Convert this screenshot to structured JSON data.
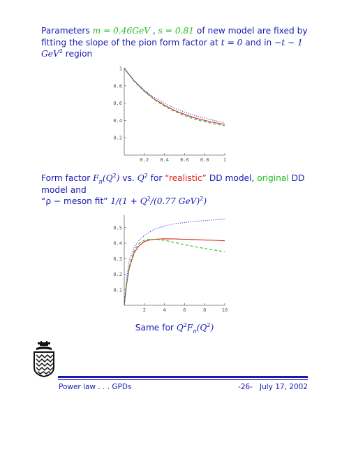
{
  "para1": {
    "lead": "Parameters ",
    "m_eq": "m = 0.46GeV",
    "sep": " , ",
    "s_eq": "s = 0.81",
    "rest": " of new model are fixed by fitting the slope of the pion form factor at ",
    "t_eq": "t = 0",
    "and_in": " and in ",
    "range": "−t ∼ 1 GeV",
    "range_sup": "2",
    "tail": " region"
  },
  "para2": {
    "lead": "Form factor ",
    "F": "F",
    "pi": "π",
    "arg": "(Q",
    "arg_sup": "2",
    "arg_close": ")",
    "vs": " vs. ",
    "Q": "Q",
    "Q_sup": "2",
    "for": " for ",
    "realistic": "“realistic”",
    "dd_model": " DD model, ",
    "original": "original",
    "dd_model_and": " DD model and",
    "rho_fit": "“ρ − meson fit”",
    "formula": " 1/(1 + Q",
    "formula_sup": "2",
    "formula_mid": "/(0.77 GeV)",
    "formula_sup2": "2",
    "formula_end": ")"
  },
  "caption": {
    "prefix": "Same for ",
    "expr": "Q",
    "sup": "2",
    "F": "F",
    "pi": "π",
    "arg": "(Q",
    "arg_sup": "2",
    "arg_end": ")"
  },
  "footer": {
    "left": "Power law . . . GPDs",
    "right": "-26-   July 17, 2002"
  },
  "colors": {
    "text": "#1a1ab0",
    "green": "#22bb22",
    "red": "#e02020",
    "blue_dotted": "#2020ee"
  },
  "chart_data": [
    {
      "type": "line",
      "title": "",
      "xlabel": "",
      "ylabel": "",
      "xlim": [
        0,
        1
      ],
      "ylim": [
        0,
        1
      ],
      "xticks": [
        "0.2",
        "0.4",
        "0.6",
        "0.8",
        "1"
      ],
      "yticks": [
        "0.2",
        "0.4",
        "0.6",
        "0.8",
        "1"
      ],
      "series": [
        {
          "style": "red-solid",
          "x": [
            0,
            0.1,
            0.2,
            0.3,
            0.4,
            0.5,
            0.6,
            0.7,
            0.8,
            0.9,
            1.0
          ],
          "y": [
            1.0,
            0.855,
            0.74,
            0.645,
            0.575,
            0.515,
            0.47,
            0.43,
            0.4,
            0.375,
            0.355
          ]
        },
        {
          "style": "green-dashed",
          "x": [
            0,
            0.1,
            0.2,
            0.3,
            0.4,
            0.5,
            0.6,
            0.7,
            0.8,
            0.9,
            1.0
          ],
          "y": [
            1.0,
            0.85,
            0.735,
            0.64,
            0.565,
            0.505,
            0.455,
            0.415,
            0.385,
            0.36,
            0.34
          ]
        },
        {
          "style": "blue-dotted",
          "x": [
            0,
            0.1,
            0.2,
            0.3,
            0.4,
            0.5,
            0.6,
            0.7,
            0.8,
            0.9,
            1.0
          ],
          "y": [
            1.0,
            0.857,
            0.748,
            0.664,
            0.597,
            0.543,
            0.497,
            0.459,
            0.426,
            0.398,
            0.372
          ]
        }
      ]
    },
    {
      "type": "line",
      "title": "",
      "xlabel": "",
      "ylabel": "",
      "xlim": [
        0,
        10
      ],
      "ylim": [
        0,
        0.58
      ],
      "xticks": [
        "2",
        "4",
        "6",
        "8",
        "10"
      ],
      "yticks": [
        "0.1",
        "0.2",
        "0.3",
        "0.4",
        "0.5"
      ],
      "series": [
        {
          "style": "red-solid",
          "x": [
            0,
            0.2,
            0.5,
            1,
            1.5,
            2,
            2.5,
            3,
            4,
            5,
            6,
            7,
            8,
            9,
            10
          ],
          "y": [
            0,
            0.12,
            0.24,
            0.34,
            0.385,
            0.41,
            0.42,
            0.425,
            0.428,
            0.427,
            0.425,
            0.423,
            0.42,
            0.418,
            0.415
          ]
        },
        {
          "style": "green-dashed",
          "x": [
            0,
            0.2,
            0.5,
            1,
            1.5,
            2,
            2.5,
            3,
            4,
            5,
            6,
            7,
            8,
            9,
            10
          ],
          "y": [
            0,
            0.125,
            0.25,
            0.355,
            0.4,
            0.418,
            0.425,
            0.425,
            0.418,
            0.405,
            0.39,
            0.378,
            0.365,
            0.355,
            0.345
          ]
        },
        {
          "style": "blue-dotted",
          "x": [
            0,
            0.2,
            0.5,
            1,
            1.5,
            2,
            3,
            4,
            5,
            6,
            7,
            8,
            9,
            10
          ],
          "y": [
            0,
            0.15,
            0.29,
            0.375,
            0.42,
            0.45,
            0.49,
            0.51,
            0.525,
            0.533,
            0.54,
            0.545,
            0.55,
            0.555
          ]
        }
      ]
    }
  ]
}
